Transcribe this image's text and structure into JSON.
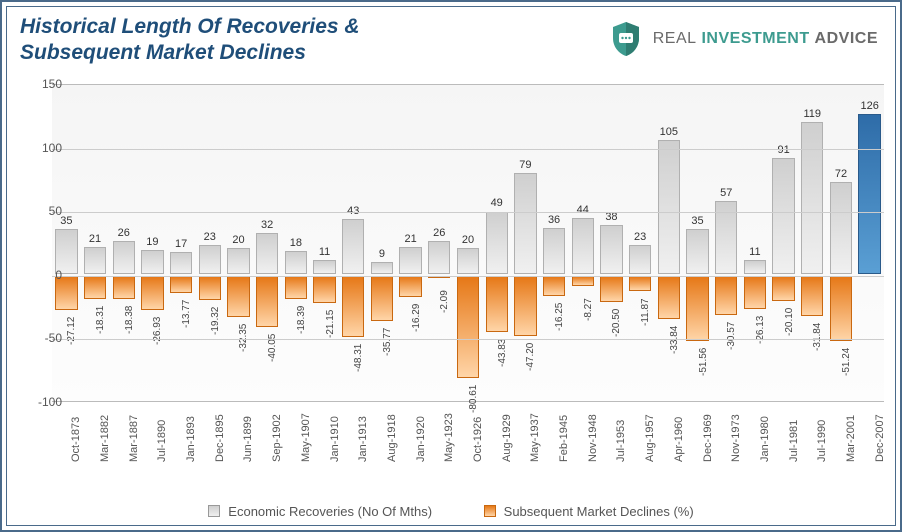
{
  "title": {
    "line1": "Historical Length Of Recoveries &",
    "line2": "Subsequent Market Declines"
  },
  "brand": {
    "word1": "REAL",
    "word2": "INVESTMENT",
    "word3": "ADVICE",
    "shield_color": "#3d9b8f"
  },
  "legend": {
    "series1": "Economic Recoveries (No Of Mths)",
    "series2": "Subsequent Market Declines (%)"
  },
  "chart": {
    "type": "bar",
    "ylim": [
      -100,
      150
    ],
    "ytick_step": 50,
    "highlight_last": true,
    "categories": [
      "Oct-1873",
      "Mar-1882",
      "Mar-1887",
      "Jul-1890",
      "Jan-1893",
      "Dec-1895",
      "Jun-1899",
      "Sep-1902",
      "May-1907",
      "Jan-1910",
      "Jan-1913",
      "Aug-1918",
      "Jan-1920",
      "May-1923",
      "Oct-1926",
      "Aug-1929",
      "May-1937",
      "Feb-1945",
      "Nov-1948",
      "Jul-1953",
      "Aug-1957",
      "Apr-1960",
      "Dec-1969",
      "Nov-1973",
      "Jan-1980",
      "Jul-1981",
      "Jul-1990",
      "Mar-2001",
      "Dec-2007"
    ],
    "recoveries": [
      35,
      21,
      26,
      19,
      17,
      23,
      20,
      32,
      18,
      11,
      43,
      9,
      21,
      26,
      20,
      49,
      79,
      36,
      44,
      38,
      23,
      105,
      35,
      57,
      11,
      91,
      119,
      72,
      126
    ],
    "declines": [
      -27.12,
      -18.31,
      -18.38,
      -26.93,
      -13.77,
      -19.32,
      -32.35,
      -40.05,
      -18.39,
      -21.15,
      -48.31,
      -35.77,
      -16.29,
      -2.09,
      -80.61,
      -43.83,
      -47.2,
      -16.25,
      -8.27,
      -20.5,
      -11.87,
      -33.84,
      -51.56,
      -30.57,
      -26.13,
      -20.1,
      -31.84,
      -51.24,
      null
    ],
    "bar_pos_color": "#cfcfcf",
    "bar_pos_highlight_color": "#4a90c8",
    "bar_neg_color": "#e67817",
    "grid_color": "#cccccc",
    "background_gradient": [
      "#f5f5f5",
      "#fdfdfd"
    ],
    "label_fontsize": 11
  }
}
